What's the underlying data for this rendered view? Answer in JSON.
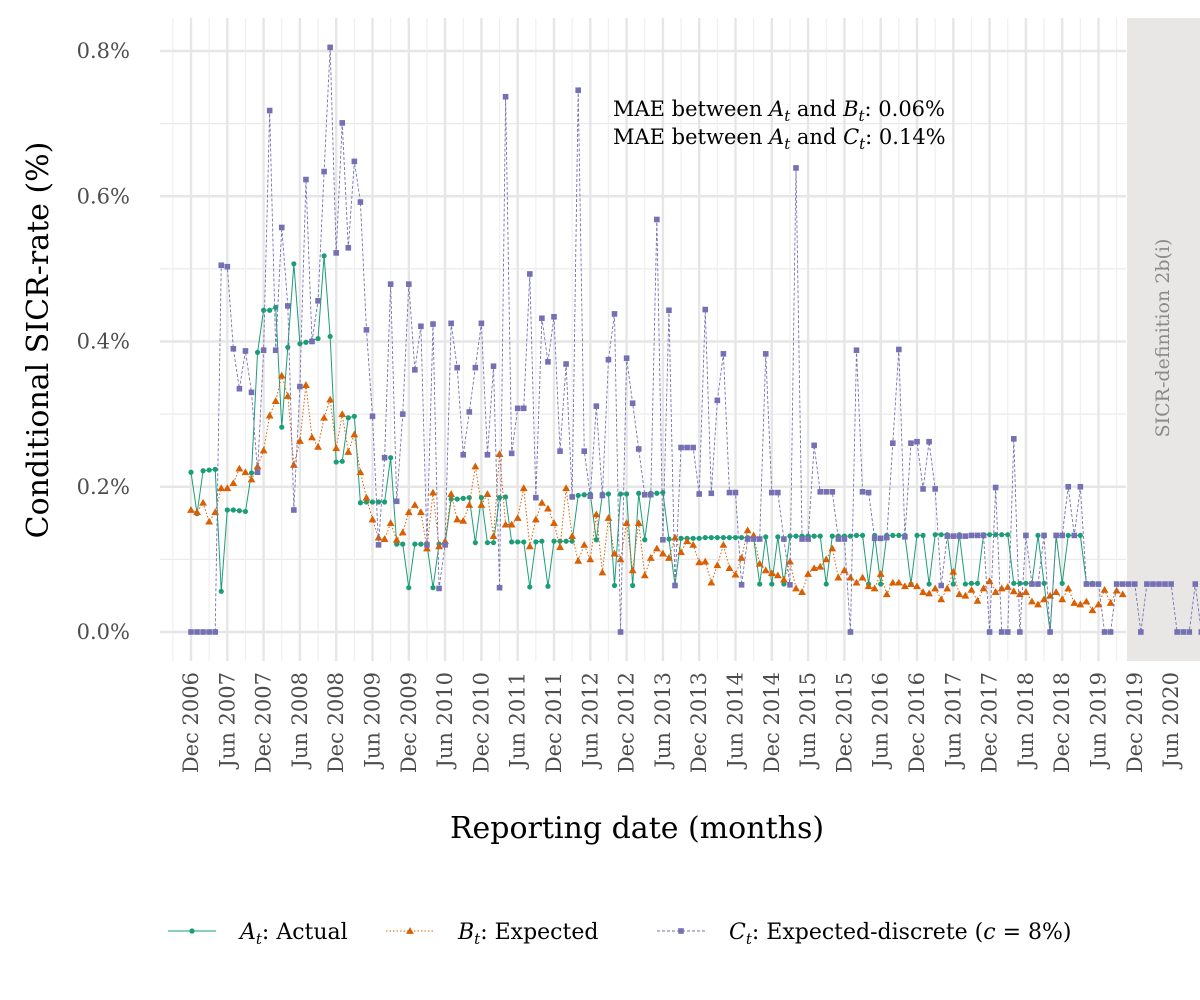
{
  "chart_data": {
    "type": "line",
    "title": "",
    "xlabel": "Reporting date (months)",
    "ylabel": "Conditional SICR-rate (%)",
    "ylim": [
      -0.04,
      0.82
    ],
    "y_ticks": [
      0,
      0.2,
      0.4,
      0.6,
      0.8
    ],
    "y_tick_labels": [
      "0.0%",
      "0.2%",
      "0.4%",
      "0.6%",
      "0.8%"
    ],
    "x_start": "2006-12",
    "x_ticks": [
      "Dec 2006",
      "Jun 2007",
      "Dec 2007",
      "Jun 2008",
      "Dec 2008",
      "Jun 2009",
      "Dec 2009",
      "Jun 2010",
      "Dec 2010",
      "Jun 2011",
      "Dec 2011",
      "Jun 2012",
      "Dec 2012",
      "Jun 2013",
      "Dec 2013",
      "Jun 2014",
      "Dec 2014",
      "Jun 2015",
      "Dec 2015",
      "Jun 2016",
      "Dec 2016",
      "Jun 2017",
      "Dec 2017",
      "Jun 2018",
      "Dec 2018",
      "Jun 2019",
      "Dec 2019",
      "Jun 2020"
    ],
    "facet_label": "SICR-definition 2b(i)",
    "grid": true,
    "legend_position": "bottom",
    "annotations": [
      {
        "prefix": "MAE between ",
        "s1": "A",
        "s1sub": "t",
        "mid": " and ",
        "s2": "B",
        "s2sub": "t",
        "suffix": ": 0.06%"
      },
      {
        "prefix": "MAE between ",
        "s1": "A",
        "s1sub": "t",
        "mid": " and ",
        "s2": "C",
        "s2sub": "t",
        "suffix": ": 0.14%"
      }
    ],
    "series": [
      {
        "name": "Actual",
        "symbol": "A",
        "subscript": "t",
        "color": "#1b9e77",
        "marker": "circle",
        "line": "solid",
        "values": [
          0.22,
          0.163,
          0.222,
          0.223,
          0.224,
          0.056,
          0.168,
          0.168,
          0.167,
          0.166,
          0.219,
          0.385,
          0.443,
          0.443,
          0.447,
          0.282,
          0.392,
          0.507,
          0.397,
          0.399,
          0.401,
          0.404,
          0.518,
          0.407,
          0.234,
          0.235,
          0.295,
          0.297,
          0.178,
          0.179,
          0.179,
          0.179,
          0.179,
          0.24,
          0.121,
          0.121,
          0.061,
          0.121,
          0.121,
          0.121,
          0.061,
          0.121,
          0.121,
          0.183,
          0.183,
          0.184,
          0.185,
          0.123,
          0.185,
          0.123,
          0.123,
          0.185,
          0.186,
          0.124,
          0.124,
          0.124,
          0.062,
          0.124,
          0.125,
          0.063,
          0.125,
          0.125,
          0.125,
          0.125,
          0.188,
          0.189,
          0.19,
          0.127,
          0.19,
          0.19,
          0.064,
          0.19,
          0.19,
          0.064,
          0.191,
          0.127,
          0.191,
          0.191,
          0.192,
          0.128,
          0.065,
          0.129,
          0.129,
          0.129,
          0.129,
          0.13,
          0.13,
          0.13,
          0.13,
          0.13,
          0.13,
          0.13,
          0.13,
          0.13,
          0.066,
          0.131,
          0.066,
          0.131,
          0.066,
          0.132,
          0.132,
          0.132,
          0.132,
          0.132,
          0.132,
          0.066,
          0.132,
          0.132,
          0.132,
          0.132,
          0.133,
          0.133,
          0.066,
          0.133,
          0.066,
          0.133,
          0.133,
          0.133,
          0.133,
          0.066,
          0.133,
          0.133,
          0.066,
          0.134,
          0.134,
          0.134,
          0.066,
          0.134,
          0.066,
          0.067,
          0.067,
          0.134,
          0.134,
          0.134,
          0.134,
          0.134,
          0.067,
          0.067,
          0.067,
          0.067,
          0.133,
          0.067,
          0.0,
          0.133,
          0.067,
          0.133,
          0.133,
          0.133,
          0.067,
          0.067
        ]
      },
      {
        "name": "Expected",
        "symbol": "B",
        "subscript": "t",
        "color": "#d95f02",
        "marker": "triangle",
        "line": "dotted",
        "values": [
          0.168,
          0.165,
          0.178,
          0.152,
          0.165,
          0.198,
          0.198,
          0.205,
          0.225,
          0.22,
          0.21,
          0.228,
          0.25,
          0.298,
          0.318,
          0.353,
          0.325,
          0.23,
          0.263,
          0.34,
          0.268,
          0.255,
          0.295,
          0.32,
          0.253,
          0.3,
          0.248,
          0.272,
          0.22,
          0.185,
          0.155,
          0.13,
          0.128,
          0.15,
          0.127,
          0.137,
          0.165,
          0.175,
          0.165,
          0.115,
          0.192,
          0.118,
          0.125,
          0.19,
          0.155,
          0.153,
          0.175,
          0.228,
          0.175,
          0.19,
          0.132,
          0.245,
          0.148,
          0.148,
          0.157,
          0.198,
          0.118,
          0.155,
          0.178,
          0.17,
          0.15,
          0.117,
          0.198,
          0.132,
          0.098,
          0.12,
          0.1,
          0.162,
          0.082,
          0.157,
          0.108,
          0.1,
          0.15,
          0.085,
          0.15,
          0.078,
          0.102,
          0.115,
          0.108,
          0.102,
          0.13,
          0.11,
          0.125,
          0.12,
          0.096,
          0.097,
          0.068,
          0.092,
          0.12,
          0.088,
          0.079,
          0.102,
          0.14,
          0.133,
          0.094,
          0.085,
          0.081,
          0.078,
          0.072,
          0.097,
          0.06,
          0.055,
          0.08,
          0.088,
          0.09,
          0.1,
          0.115,
          0.075,
          0.085,
          0.075,
          0.068,
          0.075,
          0.063,
          0.06,
          0.08,
          0.052,
          0.068,
          0.068,
          0.063,
          0.066,
          0.063,
          0.055,
          0.053,
          0.06,
          0.045,
          0.06,
          0.083,
          0.052,
          0.05,
          0.058,
          0.043,
          0.06,
          0.07,
          0.055,
          0.06,
          0.062,
          0.056,
          0.052,
          0.055,
          0.042,
          0.038,
          0.045,
          0.05,
          0.055,
          0.045,
          0.06,
          0.04,
          0.038,
          0.042,
          0.03,
          0.038,
          0.058,
          0.04,
          0.057,
          0.052
        ]
      },
      {
        "name": "Expected-discrete (",
        "name_var": "c",
        "name_tail": " = 8%)",
        "symbol": "C",
        "subscript": "t",
        "color": "#7570b3",
        "marker": "square",
        "line": "dashed",
        "values": [
          0.0,
          0.0,
          0.0,
          0.0,
          0.0,
          0.505,
          0.503,
          0.39,
          0.335,
          0.387,
          0.33,
          0.22,
          0.388,
          0.718,
          0.388,
          0.557,
          0.449,
          0.168,
          0.338,
          0.623,
          0.4,
          0.456,
          0.634,
          0.805,
          0.522,
          0.701,
          0.529,
          0.648,
          0.592,
          0.416,
          0.297,
          0.12,
          0.24,
          0.479,
          0.18,
          0.3,
          0.479,
          0.361,
          0.421,
          0.12,
          0.424,
          0.06,
          0.12,
          0.425,
          0.364,
          0.244,
          0.303,
          0.364,
          0.425,
          0.244,
          0.366,
          0.061,
          0.737,
          0.246,
          0.308,
          0.308,
          0.493,
          0.185,
          0.432,
          0.372,
          0.434,
          0.249,
          0.369,
          0.186,
          0.746,
          0.249,
          0.187,
          0.311,
          0.188,
          0.375,
          0.438,
          0.0,
          0.377,
          0.315,
          0.252,
          0.189,
          0.189,
          0.568,
          0.127,
          0.443,
          0.064,
          0.254,
          0.254,
          0.254,
          0.19,
          0.444,
          0.191,
          0.319,
          0.383,
          0.192,
          0.192,
          0.065,
          0.128,
          0.128,
          0.128,
          0.383,
          0.192,
          0.192,
          0.128,
          0.065,
          0.639,
          0.128,
          0.128,
          0.257,
          0.193,
          0.193,
          0.193,
          0.128,
          0.128,
          0.0,
          0.388,
          0.193,
          0.192,
          0.129,
          0.129,
          0.13,
          0.26,
          0.389,
          0.131,
          0.26,
          0.262,
          0.197,
          0.262,
          0.197,
          0.064,
          0.132,
          0.132,
          0.132,
          0.132,
          0.133,
          0.133,
          0.133,
          0.0,
          0.199,
          0.0,
          0.0,
          0.266,
          0.0,
          0.133,
          0.066,
          0.066,
          0.133,
          0.0,
          0.133,
          0.133,
          0.2,
          0.133,
          0.2,
          0.066,
          0.066,
          0.066,
          0.0,
          0.0,
          0.066,
          0.066,
          0.066,
          0.066,
          0.0,
          0.066,
          0.066,
          0.066,
          0.066,
          0.066,
          0.0,
          0.0,
          0.0,
          0.066,
          0.0,
          0.066,
          0.0
        ]
      }
    ]
  }
}
